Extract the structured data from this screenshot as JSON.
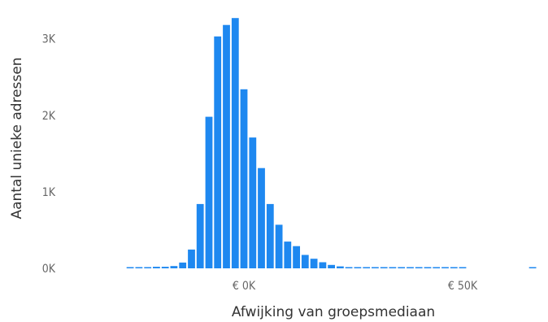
{
  "chart_data": {
    "type": "bar",
    "xlabel": "Afwijking van groepsmediaan",
    "ylabel": "Aantal unieke adressen",
    "x_ticks": [
      "€ 0K",
      "€ 50K"
    ],
    "x_tick_values": [
      0,
      50000
    ],
    "y_ticks": [
      "0K",
      "1K",
      "2K",
      "3K"
    ],
    "y_tick_values": [
      0,
      1000,
      2000,
      3000
    ],
    "ylim": [
      0,
      3400
    ],
    "xlim": [
      -28000,
      68000
    ],
    "grid": false,
    "bin_width": 2000,
    "x": [
      -26000,
      -24000,
      -22000,
      -20000,
      -18000,
      -16000,
      -14000,
      -12000,
      -10000,
      -8000,
      -6000,
      -4000,
      -2000,
      0,
      2000,
      4000,
      6000,
      8000,
      10000,
      12000,
      14000,
      16000,
      18000,
      20000,
      22000,
      24000,
      26000,
      28000,
      30000,
      32000,
      34000,
      36000,
      38000,
      40000,
      42000,
      44000,
      46000,
      48000,
      50000,
      66000
    ],
    "values": [
      15,
      15,
      15,
      20,
      20,
      30,
      75,
      245,
      840,
      1980,
      3030,
      3180,
      3270,
      2340,
      1710,
      1310,
      840,
      570,
      350,
      290,
      175,
      125,
      80,
      45,
      25,
      15,
      10,
      8,
      6,
      5,
      4,
      4,
      3,
      3,
      2,
      2,
      2,
      2,
      2,
      3
    ],
    "bar_color": "#1E88F0"
  }
}
